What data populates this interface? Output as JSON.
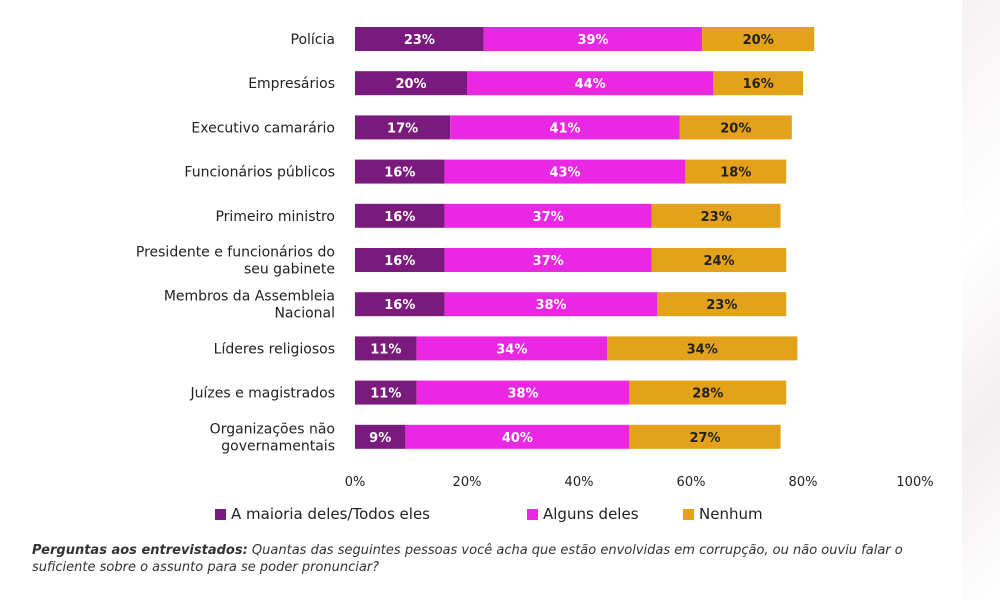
{
  "chart_data": {
    "type": "bar",
    "orientation": "horizontal",
    "stacked": true,
    "categories": [
      [
        "Polícia"
      ],
      [
        "Empresários"
      ],
      [
        "Executivo camarário"
      ],
      [
        "Funcionários públicos"
      ],
      [
        "Primeiro ministro"
      ],
      [
        "Presidente e funcionários do",
        "seu gabinete"
      ],
      [
        "Membros da Assembleia",
        "Nacional"
      ],
      [
        "Líderes religiosos"
      ],
      [
        "Juízes e magistrados"
      ],
      [
        "Organizações não",
        "governamentais"
      ]
    ],
    "series": [
      {
        "name": "A maioria deles/Todos eles",
        "color": "#7b1a7d",
        "text_color": "#ffffff",
        "values": [
          23,
          20,
          17,
          16,
          16,
          16,
          16,
          11,
          11,
          9
        ]
      },
      {
        "name": "Alguns deles",
        "color": "#ea28e4",
        "text_color": "#ffffff",
        "values": [
          39,
          44,
          41,
          43,
          37,
          37,
          38,
          34,
          38,
          40
        ]
      },
      {
        "name": "Nenhum",
        "color": "#e3a21a",
        "text_color": "#222222",
        "values": [
          20,
          16,
          20,
          18,
          23,
          24,
          23,
          34,
          28,
          27
        ]
      }
    ],
    "value_suffix": "%",
    "xlim": [
      0,
      100
    ],
    "xticks": [
      "0%",
      "20%",
      "40%",
      "60%",
      "80%",
      "100%"
    ],
    "grid": false,
    "legend_position": "bottom"
  },
  "footnote": {
    "lead": "Perguntas aos entrevistados:",
    "text": " Quantas das seguintes pessoas você acha que estão envolvidas em corrupção, ou não ouviu falar o suficiente sobre o assunto para se poder pronunciar?"
  }
}
